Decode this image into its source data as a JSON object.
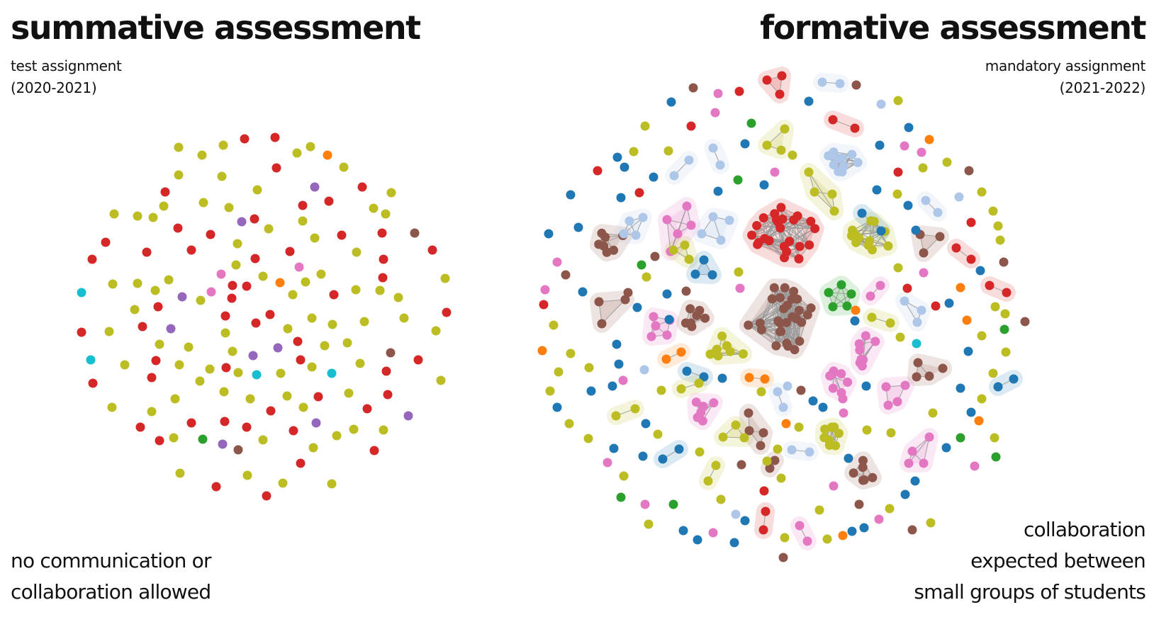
{
  "summative": {
    "title": "summative assessment",
    "subtitle_lines": [
      "test assignment",
      "(2020-2021)"
    ],
    "note_lines": [
      "no communication or",
      "collaboration allowed"
    ]
  },
  "formative": {
    "title": "formative assessment",
    "subtitle_lines": [
      "mandatory assignment",
      "(2021-2022)"
    ],
    "note_lines": [
      "collaboration",
      "expected between",
      "small groups of students"
    ]
  },
  "palette": {
    "olive": "#bcbd22",
    "red": "#d62728",
    "brown": "#8c564b",
    "blue": "#1f77b4",
    "lightblue": "#aec7e8",
    "pink": "#e377c2",
    "green": "#2ca02c",
    "orange": "#ff7f0e",
    "purple": "#9467bd",
    "cyan": "#17becf",
    "edge": "#999999"
  }
}
